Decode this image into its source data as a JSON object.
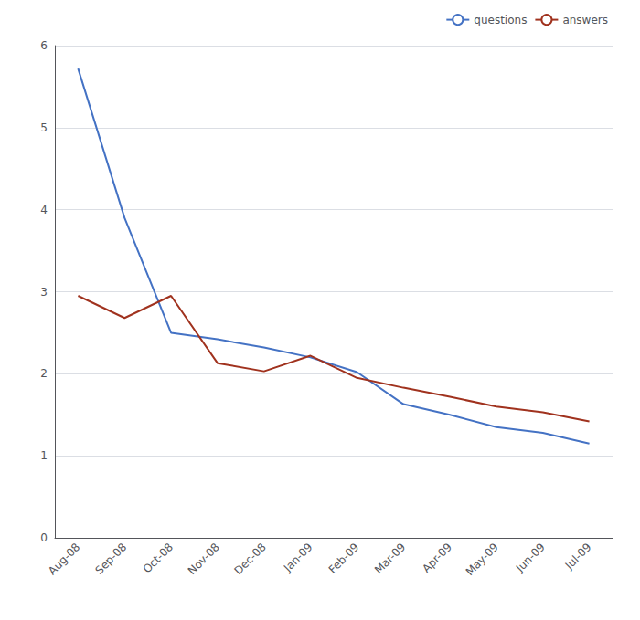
{
  "chart_data": {
    "type": "line",
    "categories": [
      "Aug-08",
      "Sep-08",
      "Oct-08",
      "Nov-08",
      "Dec-08",
      "Jan-09",
      "Feb-09",
      "Mar-09",
      "Apr-09",
      "May-09",
      "Jun-09",
      "Jul-09"
    ],
    "series": [
      {
        "name": "questions",
        "color": "#4472C4",
        "values": [
          5.72,
          3.9,
          2.5,
          2.42,
          2.32,
          2.2,
          2.02,
          1.63,
          1.5,
          1.35,
          1.28,
          1.15
        ]
      },
      {
        "name": "answers",
        "color": "#A0321E",
        "values": [
          2.95,
          2.68,
          2.95,
          2.13,
          2.03,
          2.22,
          1.95,
          1.83,
          1.72,
          1.6,
          1.53,
          1.42
        ]
      }
    ],
    "ylim": [
      0,
      6
    ],
    "yticks": [
      0,
      1,
      2,
      3,
      4,
      5,
      6
    ],
    "grid": true,
    "legend": "upper right"
  }
}
